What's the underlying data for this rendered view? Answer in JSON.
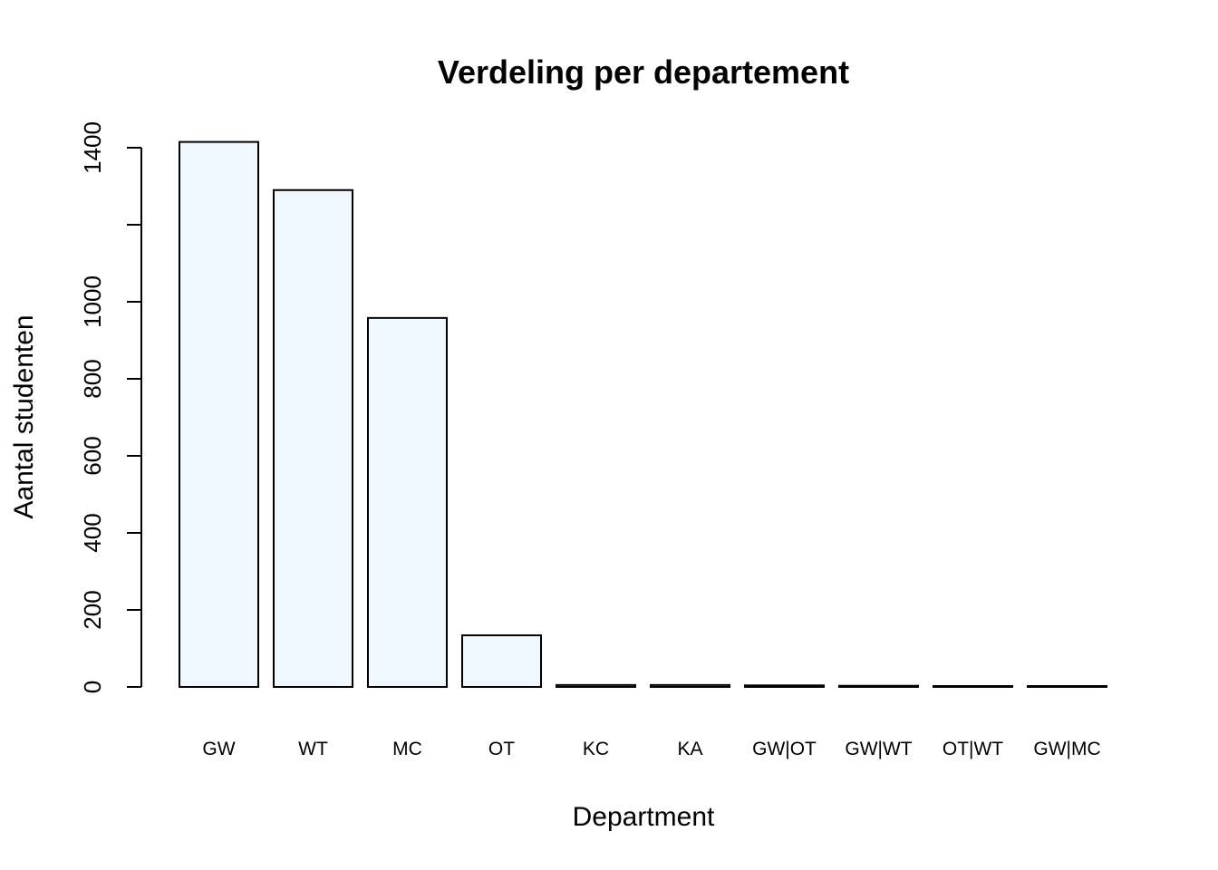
{
  "chart_data": {
    "type": "bar",
    "title": "Verdeling per departement",
    "xlabel": "Department",
    "ylabel": "Aantal studenten",
    "categories": [
      "GW",
      "WT",
      "MC",
      "OT",
      "KC",
      "KA",
      "GW|OT",
      "GW|WT",
      "OT|WT",
      "GW|MC"
    ],
    "values": [
      1415,
      1290,
      958,
      134,
      5,
      5,
      4,
      3,
      2,
      2
    ],
    "yticks": [
      0,
      200,
      400,
      600,
      800,
      1000,
      1200,
      1400
    ],
    "ytick_labels": [
      "0",
      "200",
      "400",
      "600",
      "800",
      "1000",
      "",
      "1400"
    ],
    "ylim": [
      0,
      1400
    ],
    "grid": false,
    "bar_fill": "#F0F8FF",
    "bar_stroke": "#000000"
  }
}
